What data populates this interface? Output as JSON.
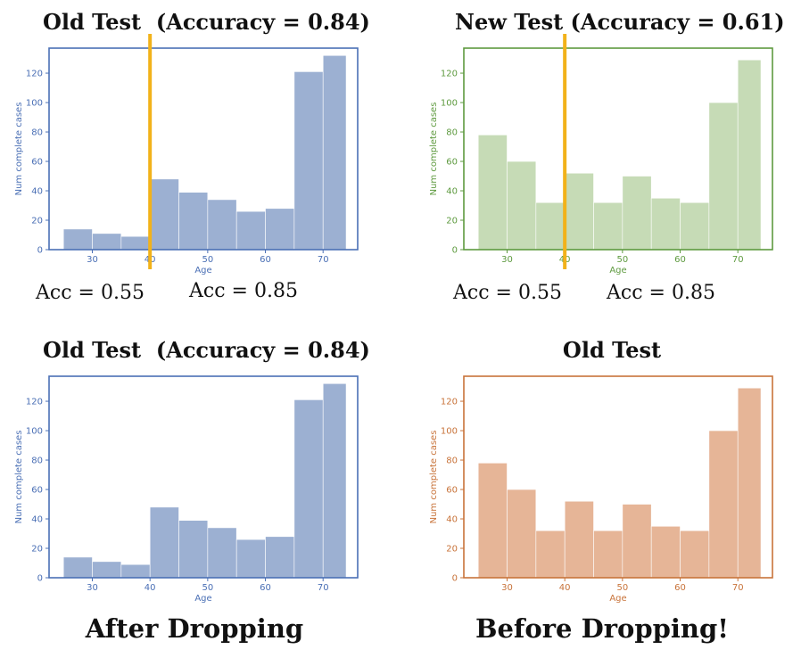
{
  "titles": {
    "top_left": "Old Test  (Accuracy = 0.84)",
    "top_right": "New Test (Accuracy = 0.61)",
    "bottom_left": "Old Test  (Accuracy = 0.84)",
    "bottom_right": "Old Test"
  },
  "annotations": {
    "left_acc_low": "Acc = 0.55",
    "left_acc_high": "Acc = 0.85",
    "right_acc_low": "Acc = 0.55",
    "right_acc_high": "Acc = 0.85"
  },
  "captions": {
    "left": "After Dropping",
    "right": "Before Dropping!"
  },
  "colors": {
    "blue": "#4a6fb5",
    "blue_fill": "#9cb0d2",
    "green": "#5e9a3f",
    "green_fill": "#c6dbb6",
    "orange": "#c8733a",
    "orange_fill": "#e6b597",
    "threshold_line": "#f2b21a"
  },
  "chart_data": [
    {
      "type": "bar",
      "panel": "top-left",
      "xlabel": "Age",
      "ylabel": "Num complete cases",
      "xlim": [
        22.5,
        76
      ],
      "ylim": [
        0,
        137
      ],
      "xticks": [
        30,
        40,
        50,
        60,
        70
      ],
      "yticks": [
        0,
        20,
        40,
        60,
        80,
        100,
        120
      ],
      "bin_edges": [
        25,
        30,
        35,
        40,
        45,
        50,
        55,
        60,
        65,
        70,
        74
      ],
      "values": [
        14,
        11,
        9,
        48,
        39,
        34,
        26,
        28,
        121,
        132
      ],
      "threshold_x": 40,
      "color": "blue"
    },
    {
      "type": "bar",
      "panel": "top-right",
      "xlabel": "Age",
      "ylabel": "Num complete cases",
      "xlim": [
        22.5,
        76
      ],
      "ylim": [
        0,
        137
      ],
      "xticks": [
        30,
        40,
        50,
        60,
        70
      ],
      "yticks": [
        0,
        20,
        40,
        60,
        80,
        100,
        120
      ],
      "bin_edges": [
        25,
        30,
        35,
        40,
        45,
        50,
        55,
        60,
        65,
        70,
        74
      ],
      "values": [
        78,
        60,
        32,
        52,
        32,
        50,
        35,
        32,
        100,
        129
      ],
      "threshold_x": 40,
      "color": "green"
    },
    {
      "type": "bar",
      "panel": "bottom-left",
      "xlabel": "Age",
      "ylabel": "Num complete cases",
      "xlim": [
        22.5,
        76
      ],
      "ylim": [
        0,
        137
      ],
      "xticks": [
        30,
        40,
        50,
        60,
        70
      ],
      "yticks": [
        0,
        20,
        40,
        60,
        80,
        100,
        120
      ],
      "bin_edges": [
        25,
        30,
        35,
        40,
        45,
        50,
        55,
        60,
        65,
        70,
        74
      ],
      "values": [
        14,
        11,
        9,
        48,
        39,
        34,
        26,
        28,
        121,
        132
      ],
      "threshold_x": null,
      "color": "blue"
    },
    {
      "type": "bar",
      "panel": "bottom-right",
      "xlabel": "Age",
      "ylabel": "Num complete cases",
      "xlim": [
        22.5,
        76
      ],
      "ylim": [
        0,
        137
      ],
      "xticks": [
        30,
        40,
        50,
        60,
        70
      ],
      "yticks": [
        0,
        20,
        40,
        60,
        80,
        100,
        120
      ],
      "bin_edges": [
        25,
        30,
        35,
        40,
        45,
        50,
        55,
        60,
        65,
        70,
        74
      ],
      "values": [
        78,
        60,
        32,
        52,
        32,
        50,
        35,
        32,
        100,
        129
      ],
      "threshold_x": null,
      "color": "orange"
    }
  ]
}
